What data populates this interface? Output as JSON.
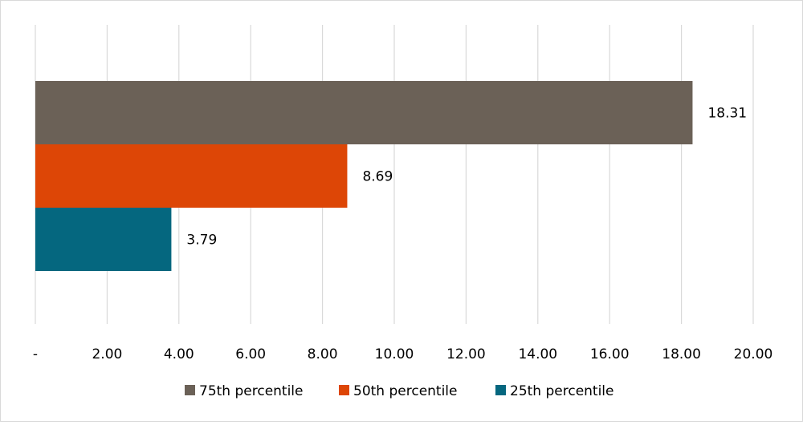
{
  "chart_data": {
    "type": "bar",
    "orientation": "horizontal",
    "title": "",
    "xlabel": "",
    "ylabel": "",
    "xlim": [
      0,
      20
    ],
    "x_ticks": [
      0,
      2,
      4,
      6,
      8,
      10,
      12,
      14,
      16,
      18,
      20
    ],
    "x_tick_labels": [
      "-",
      "2.00",
      "4.00",
      "6.00",
      "8.00",
      "10.00",
      "12.00",
      "14.00",
      "16.00",
      "18.00",
      "20.00"
    ],
    "grid": "vertical",
    "legend_position": "bottom",
    "series": [
      {
        "name": "75th percentile",
        "value": 18.31,
        "label": "18.31",
        "color": "#6b6157"
      },
      {
        "name": "50th percentile",
        "value": 8.69,
        "label": "8.69",
        "color": "#dd4606"
      },
      {
        "name": "25th percentile",
        "value": 3.79,
        "label": "3.79",
        "color": "#05677f"
      }
    ]
  }
}
